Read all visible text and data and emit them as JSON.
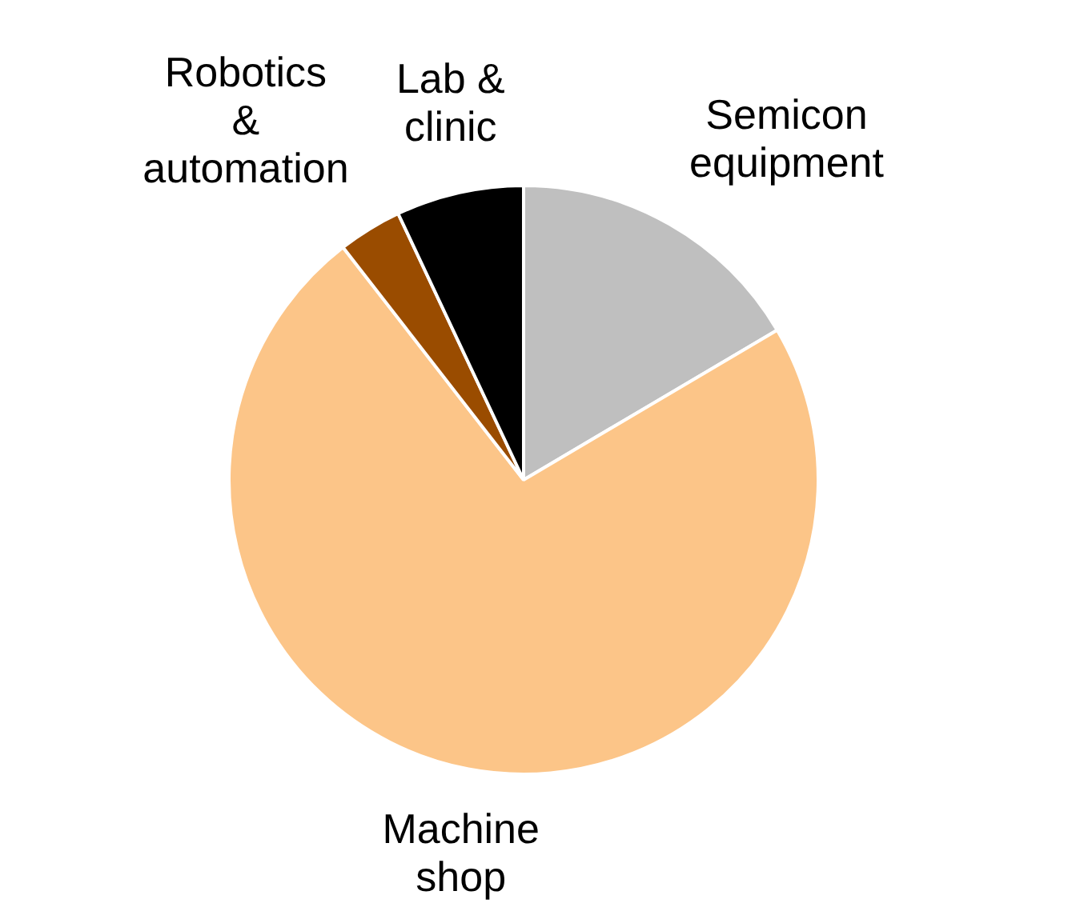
{
  "chart_data": {
    "type": "pie",
    "categories": [
      "Semicon equipment",
      "Machine shop",
      "Robotics & automation",
      "Lab & clinic"
    ],
    "values": [
      16.5,
      73,
      3.5,
      7
    ],
    "colors": [
      "#bfbfbf",
      "#fcc588",
      "#9a4c00",
      "#000000"
    ],
    "legend": false
  }
}
